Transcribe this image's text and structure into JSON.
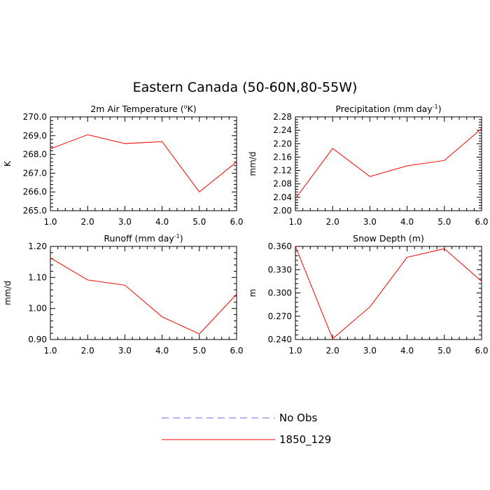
{
  "title": "Eastern Canada (50-60N,80-55W)",
  "legend": {
    "placement": "bottom-center",
    "items": [
      {
        "label": "No Obs",
        "color": "#6b6bff",
        "dash": true
      },
      {
        "label": "1850_129",
        "color": "#ff0000",
        "dash": false
      }
    ]
  },
  "chart_data": [
    {
      "type": "line",
      "title_main": "2m Air Temperature (",
      "title_sup": "o",
      "title_tail": "K)",
      "ylabel": "K",
      "x": [
        1,
        2,
        3,
        4,
        5,
        6
      ],
      "xlim": [
        1,
        6
      ],
      "xticks": [
        "1.0",
        "2.0",
        "3.0",
        "4.0",
        "5.0",
        "6.0"
      ],
      "ylim": [
        265.0,
        270.0
      ],
      "yticks": [
        "270.0",
        "269.0",
        "268.0",
        "267.0",
        "266.0",
        "265.0"
      ],
      "series": [
        {
          "name": "1850_129",
          "values": [
            268.3,
            269.05,
            268.58,
            268.68,
            266.0,
            267.6
          ]
        }
      ]
    },
    {
      "type": "line",
      "title_main": "Precipitation (mm day",
      "title_sup": "-1",
      "title_tail": ")",
      "ylabel": "mm/d",
      "x": [
        1,
        2,
        3,
        4,
        5,
        6
      ],
      "xlim": [
        1,
        6
      ],
      "xticks": [
        "1.0",
        "2.0",
        "3.0",
        "4.0",
        "5.0",
        "6.0"
      ],
      "ylim": [
        2.0,
        2.28
      ],
      "yticks": [
        "2.28",
        "2.24",
        "2.20",
        "2.16",
        "2.12",
        "2.08",
        "2.04",
        "2.00"
      ],
      "series": [
        {
          "name": "1850_129",
          "values": [
            2.036,
            2.186,
            2.102,
            2.134,
            2.15,
            2.245
          ]
        }
      ]
    },
    {
      "type": "line",
      "title_main": "Runoff (mm day",
      "title_sup": "-1",
      "title_tail": ")",
      "ylabel": "mm/d",
      "x": [
        1,
        2,
        3,
        4,
        5,
        6
      ],
      "xlim": [
        1,
        6
      ],
      "xticks": [
        "1.0",
        "2.0",
        "3.0",
        "4.0",
        "5.0",
        "6.0"
      ],
      "ylim": [
        0.9,
        1.2
      ],
      "yticks": [
        "1.20",
        "1.10",
        "1.00",
        "0.90"
      ],
      "series": [
        {
          "name": "1850_129",
          "values": [
            1.163,
            1.092,
            1.075,
            0.973,
            0.918,
            1.046
          ]
        }
      ]
    },
    {
      "type": "line",
      "title_main": "Snow Depth (m)",
      "title_sup": "",
      "title_tail": "",
      "ylabel": "m",
      "x": [
        1,
        2,
        3,
        4,
        5,
        6
      ],
      "xlim": [
        1,
        6
      ],
      "xticks": [
        "1.0",
        "2.0",
        "3.0",
        "4.0",
        "5.0",
        "6.0"
      ],
      "ylim": [
        0.24,
        0.36
      ],
      "yticks": [
        "0.360",
        "0.330",
        "0.300",
        "0.270",
        "0.240"
      ],
      "series": [
        {
          "name": "1850_129",
          "values": [
            0.36,
            0.241,
            0.282,
            0.346,
            0.357,
            0.315
          ]
        }
      ]
    }
  ]
}
